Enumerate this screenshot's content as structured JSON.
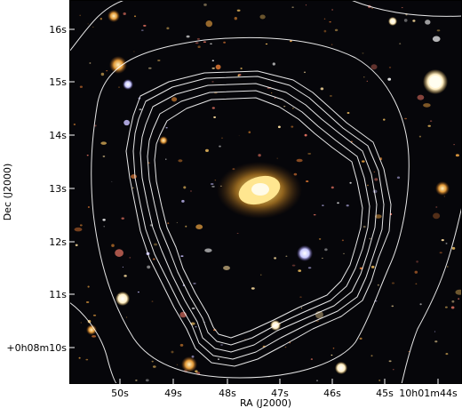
{
  "figure": {
    "x_axis_label": "RA (J2000)",
    "y_axis_label": "Dec (J2000)",
    "x_tick_labels": [
      "50s",
      "49s",
      "48s",
      "47s",
      "46s",
      "45s",
      "10h01m44s"
    ],
    "y_tick_labels": [
      "16s",
      "15s",
      "14s",
      "13s",
      "12s",
      "11s",
      "+0h08m10s"
    ]
  },
  "colors": {
    "sky_background": "#06060a",
    "contour_lines": "#ffffff",
    "central_galaxy": "#ffd24a"
  }
}
